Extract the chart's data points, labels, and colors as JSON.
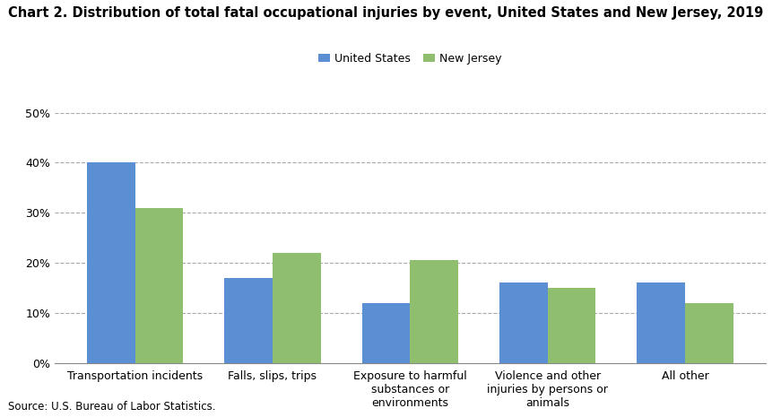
{
  "title": "Chart 2. Distribution of total fatal occupational injuries by event, United States and New Jersey, 2019",
  "categories": [
    "Transportation incidents",
    "Falls, slips, trips",
    "Exposure to harmful\nsubstances or\nenvironments",
    "Violence and other\ninjuries by persons or\nanimals",
    "All other"
  ],
  "us_values": [
    0.4,
    0.17,
    0.12,
    0.16,
    0.16
  ],
  "nj_values": [
    0.31,
    0.22,
    0.205,
    0.15,
    0.12
  ],
  "us_color": "#5B8FD4",
  "nj_color": "#8FBF6E",
  "us_label": "United States",
  "nj_label": "New Jersey",
  "ylim": [
    0,
    0.5
  ],
  "yticks": [
    0,
    0.1,
    0.2,
    0.3,
    0.4,
    0.5
  ],
  "source": "Source: U.S. Bureau of Labor Statistics.",
  "background_color": "#ffffff",
  "grid_color": "#aaaaaa",
  "bar_width": 0.35,
  "title_fontsize": 10.5,
  "tick_fontsize": 9,
  "legend_fontsize": 9
}
